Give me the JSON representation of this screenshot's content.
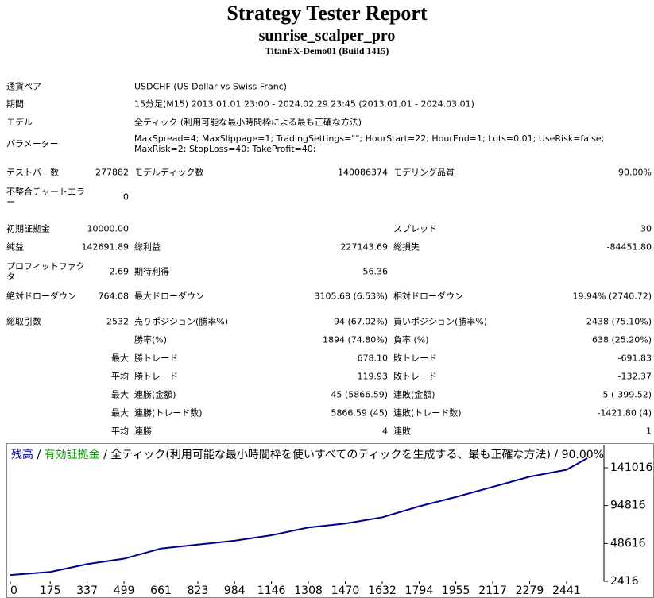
{
  "header": {
    "title": "Strategy Tester Report",
    "expert": "sunrise_scalper_pro",
    "server": "TitanFX-Demo01 (Build 1415)"
  },
  "rows": [
    {
      "label": "通貨ペア",
      "text": "USDCHF (US Dollar vs Swiss Franc)"
    },
    {
      "label": "期間",
      "text": "15分足(M15) 2013.01.01 23:00 - 2024.02.29 23:45 (2013.01.01 - 2024.03.01)"
    },
    {
      "label": "モデル",
      "text": "全ティック (利用可能な最小時間枠による最も正確な方法)"
    },
    {
      "label": "パラメーター",
      "text": "MaxSpread=4; MaxSlippage=1; TradingSettings=\"\"; HourStart=22; HourEnd=1; Lots=0.01; UseRisk=false; MaxRisk=2; StopLoss=40; TakeProfit=40;"
    },
    {
      "label": "テストバー数",
      "value": "277882",
      "label2": "モデルティック数",
      "value2": "140086374",
      "label3": "モデリング品質",
      "value3": "90.00%"
    },
    {
      "label": "不整合チャートエラー",
      "value": "0"
    },
    {
      "label": "初期証拠金",
      "value": "10000.00",
      "label3": "スプレッド",
      "value3": "30"
    },
    {
      "label": "純益",
      "value": "142691.89",
      "label2": "総利益",
      "value2": "227143.69",
      "label3": "総損失",
      "value3": "-84451.80"
    },
    {
      "label": "プロフィットファクタ",
      "value": "2.69",
      "label2": "期待利得",
      "value2": "56.36"
    },
    {
      "label": "絶対ドローダウン",
      "value": "764.08",
      "label2": "最大ドローダウン",
      "value2": "3105.68 (6.53%)",
      "label3": "相対ドローダウン",
      "value3": "19.94% (2740.72)"
    },
    {
      "label": "総取引数",
      "value": "2532",
      "label2": "売りポジション(勝率%)",
      "value2": "94 (67.02%)",
      "label3": "買いポジション(勝率%)",
      "value3": "2438 (75.10%)"
    },
    {
      "label2": "勝率(%)",
      "value2": "1894 (74.80%)",
      "label3": "負率 (%)",
      "value3": "638 (25.20%)"
    },
    {
      "value": "最大",
      "label2": "勝トレード",
      "value2": "678.10",
      "label3": "敗トレード",
      "value3": "-691.83"
    },
    {
      "value": "平均",
      "label2": "勝トレード",
      "value2": "119.93",
      "label3": "敗トレード",
      "value3": "-132.37"
    },
    {
      "value": "最大",
      "label2": "連勝(金額)",
      "value2": "45 (5866.59)",
      "label3": "連敗(金額)",
      "value3": "5 (-399.52)"
    },
    {
      "value": "最大",
      "label2": "連勝(トレード数)",
      "value2": "5866.59 (45)",
      "label3": "連敗(トレード数)",
      "value3": "-1421.80 (4)"
    },
    {
      "value": "平均",
      "label2": "連勝",
      "value2": "4",
      "label3": "連敗",
      "value3": "1"
    }
  ],
  "chart_data": {
    "type": "line",
    "separator": "/",
    "equity_label": "有効証拠金",
    "equity_color": "#00a000",
    "note": "/ 全ティック(利用可能な最小時間枠を使いすべてのティックを生成する、最も正確な方法) / 90.00%",
    "x": [
      0,
      175,
      337,
      499,
      661,
      823,
      984,
      1146,
      1308,
      1470,
      1632,
      1794,
      1955,
      2117,
      2279,
      2441,
      2532
    ],
    "series": [
      {
        "name": "残高",
        "color": "#00008b",
        "values": [
          10000,
          13800,
          23400,
          30000,
          42400,
          47200,
          52000,
          58600,
          68100,
          72900,
          80500,
          93900,
          105300,
          117700,
          130100,
          138600,
          152692
        ]
      }
    ],
    "xlim": [
      0,
      2605
    ],
    "xticks": [
      0,
      175,
      337,
      499,
      661,
      823,
      984,
      1146,
      1308,
      1470,
      1632,
      1794,
      1955,
      2117,
      2279,
      2441
    ],
    "ylim": [
      2416,
      169120
    ],
    "yticks": [
      2416,
      48616,
      94816,
      141016
    ]
  }
}
